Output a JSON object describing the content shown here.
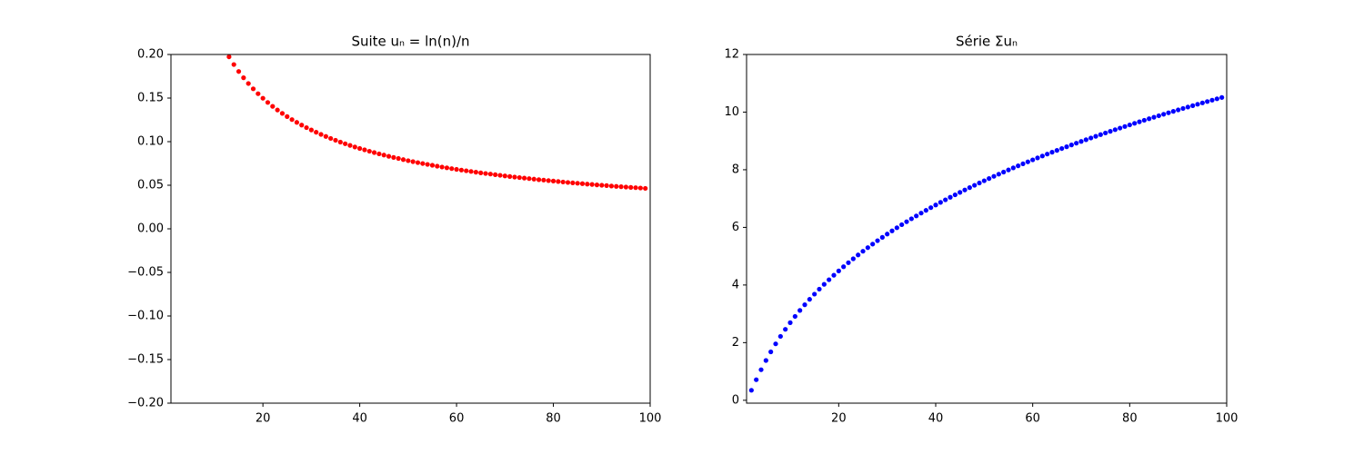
{
  "chart_data": [
    {
      "type": "scatter",
      "title": "Suite  uₙ = ln(n)/n",
      "color": "#ff0000",
      "x": [
        13,
        14,
        15,
        16,
        17,
        18,
        19,
        20,
        21,
        22,
        23,
        24,
        25,
        26,
        27,
        28,
        29,
        30,
        31,
        32,
        33,
        34,
        35,
        36,
        37,
        38,
        39,
        40,
        41,
        42,
        43,
        44,
        45,
        46,
        47,
        48,
        49,
        50,
        51,
        52,
        53,
        54,
        55,
        56,
        57,
        58,
        59,
        60,
        61,
        62,
        63,
        64,
        65,
        66,
        67,
        68,
        69,
        70,
        71,
        72,
        73,
        74,
        75,
        76,
        77,
        78,
        79,
        80,
        81,
        82,
        83,
        84,
        85,
        86,
        87,
        88,
        89,
        90,
        91,
        92,
        93,
        94,
        95,
        96,
        97,
        98,
        99
      ],
      "values": [
        0.1973,
        0.1885,
        0.1805,
        0.1733,
        0.1667,
        0.1606,
        0.155,
        0.1498,
        0.145,
        0.1405,
        0.1363,
        0.1324,
        0.1288,
        0.1253,
        0.1221,
        0.119,
        0.1161,
        0.1134,
        0.1108,
        0.1083,
        0.106,
        0.1037,
        0.1016,
        0.0995,
        0.0976,
        0.0957,
        0.0939,
        0.0922,
        0.0906,
        0.089,
        0.0875,
        0.086,
        0.0846,
        0.0832,
        0.0819,
        0.0807,
        0.0794,
        0.0782,
        0.0771,
        0.076,
        0.0749,
        0.0739,
        0.0729,
        0.0719,
        0.0709,
        0.07,
        0.0691,
        0.0682,
        0.0674,
        0.0666,
        0.0658,
        0.065,
        0.0642,
        0.0635,
        0.0628,
        0.0621,
        0.0614,
        0.0607,
        0.06,
        0.0594,
        0.0588,
        0.0582,
        0.0576,
        0.057,
        0.0564,
        0.0559,
        0.0553,
        0.0548,
        0.0543,
        0.0537,
        0.0532,
        0.0527,
        0.0523,
        0.0518,
        0.0513,
        0.0509,
        0.0504,
        0.05,
        0.0496,
        0.0491,
        0.0487,
        0.0483,
        0.0479,
        0.0475,
        0.0472,
        0.0468,
        0.0464
      ],
      "xlim": [
        1,
        100
      ],
      "xticks": [
        20,
        40,
        60,
        80,
        100
      ],
      "ylim": [
        -0.2,
        0.2
      ],
      "yticks": [
        {
          "value": -0.2,
          "label": "−0.20"
        },
        {
          "value": -0.15,
          "label": "−0.15"
        },
        {
          "value": -0.1,
          "label": "−0.10"
        },
        {
          "value": -0.05,
          "label": "−0.05"
        },
        {
          "value": 0,
          "label": "0.00"
        },
        {
          "value": 0.05,
          "label": "0.05"
        },
        {
          "value": 0.1,
          "label": "0.10"
        },
        {
          "value": 0.15,
          "label": "0.15"
        },
        {
          "value": 0.2,
          "label": "0.20"
        }
      ]
    },
    {
      "type": "scatter",
      "title": "Série Σuₙ",
      "color": "#0000ff",
      "x": [
        2,
        3,
        4,
        5,
        6,
        7,
        8,
        9,
        10,
        11,
        12,
        13,
        14,
        15,
        16,
        17,
        18,
        19,
        20,
        21,
        22,
        23,
        24,
        25,
        26,
        27,
        28,
        29,
        30,
        31,
        32,
        33,
        34,
        35,
        36,
        37,
        38,
        39,
        40,
        41,
        42,
        43,
        44,
        45,
        46,
        47,
        48,
        49,
        50,
        51,
        52,
        53,
        54,
        55,
        56,
        57,
        58,
        59,
        60,
        61,
        62,
        63,
        64,
        65,
        66,
        67,
        68,
        69,
        70,
        71,
        72,
        73,
        74,
        75,
        76,
        77,
        78,
        79,
        80,
        81,
        82,
        83,
        84,
        85,
        86,
        87,
        88,
        89,
        90,
        91,
        92,
        93,
        94,
        95,
        96,
        97,
        98,
        99
      ],
      "values": [
        0.3466,
        0.7128,
        1.0594,
        1.3813,
        1.6799,
        1.9579,
        2.2178,
        2.4619,
        2.6922,
        2.9102,
        3.1173,
        3.3146,
        3.5031,
        3.6836,
        3.8569,
        4.0236,
        4.1842,
        4.3392,
        4.489,
        4.634,
        4.7745,
        4.9108,
        5.0432,
        5.172,
        5.2973,
        5.4194,
        5.5384,
        5.6545,
        5.7679,
        5.8787,
        5.987,
        6.093,
        6.1967,
        6.2983,
        6.3978,
        6.4954,
        6.5911,
        6.685,
        6.7772,
        6.8678,
        6.9568,
        7.0443,
        7.1303,
        7.2149,
        7.2981,
        7.38,
        7.4607,
        7.5401,
        7.6183,
        7.6954,
        7.7714,
        7.8463,
        7.9202,
        7.9931,
        8.065,
        8.1359,
        8.2059,
        8.275,
        8.3432,
        8.4106,
        8.4772,
        8.543,
        8.608,
        8.6722,
        8.7357,
        8.7985,
        8.8606,
        8.922,
        8.9827,
        9.0427,
        9.1021,
        9.1609,
        9.2191,
        9.2767,
        9.3337,
        9.3901,
        9.446,
        9.5013,
        9.5561,
        9.6104,
        9.6641,
        9.7173,
        9.77,
        9.8223,
        9.8741,
        9.9254,
        9.9763,
        10.0267,
        10.0767,
        10.1263,
        10.1754,
        10.2241,
        10.2724,
        10.3203,
        10.3678,
        10.415,
        10.4618,
        10.5082
      ],
      "xlim": [
        1,
        100
      ],
      "xticks": [
        20,
        40,
        60,
        80,
        100
      ],
      "ylim": [
        -0.1,
        12
      ],
      "yticks": [
        0,
        2,
        4,
        6,
        8,
        10,
        12
      ]
    }
  ]
}
